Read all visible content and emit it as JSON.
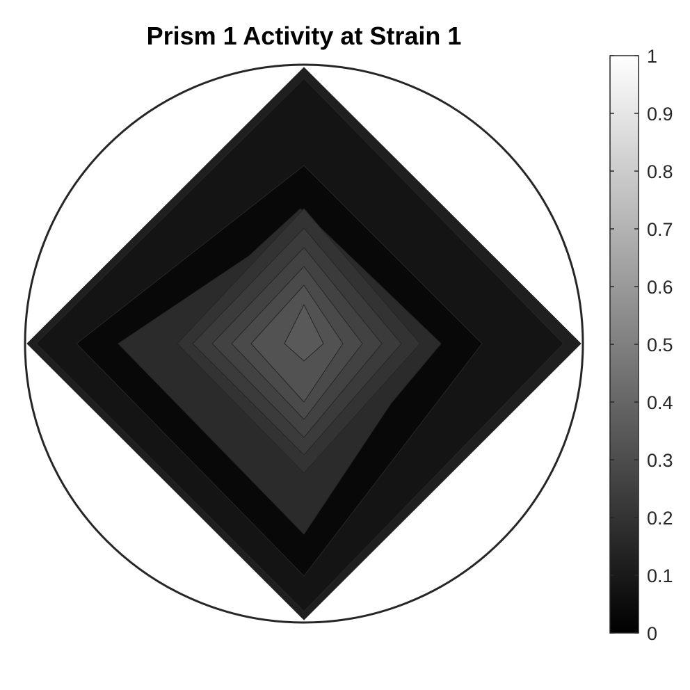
{
  "chart_data": {
    "type": "heatmap",
    "title": "Prism 1 Activity at Strain 1",
    "xlabel": "",
    "ylabel": "",
    "colormap": "gray",
    "colorbar": {
      "placement": "right",
      "limits": [
        0,
        1
      ],
      "ticks": [
        "0",
        "0.1",
        "0.2",
        "0.3",
        "0.4",
        "0.5",
        "0.6",
        "0.7",
        "0.8",
        "0.9",
        "1"
      ]
    },
    "contour_levels": [
      0.12,
      0.08,
      0.03,
      0.17,
      0.2,
      0.23,
      0.26,
      0.29,
      0.32,
      0.35
    ],
    "boundary": "circle",
    "grid": false
  },
  "colors": {
    "background": "#ffffff",
    "circle_outline": "#262626",
    "contour_line": "#262626"
  }
}
